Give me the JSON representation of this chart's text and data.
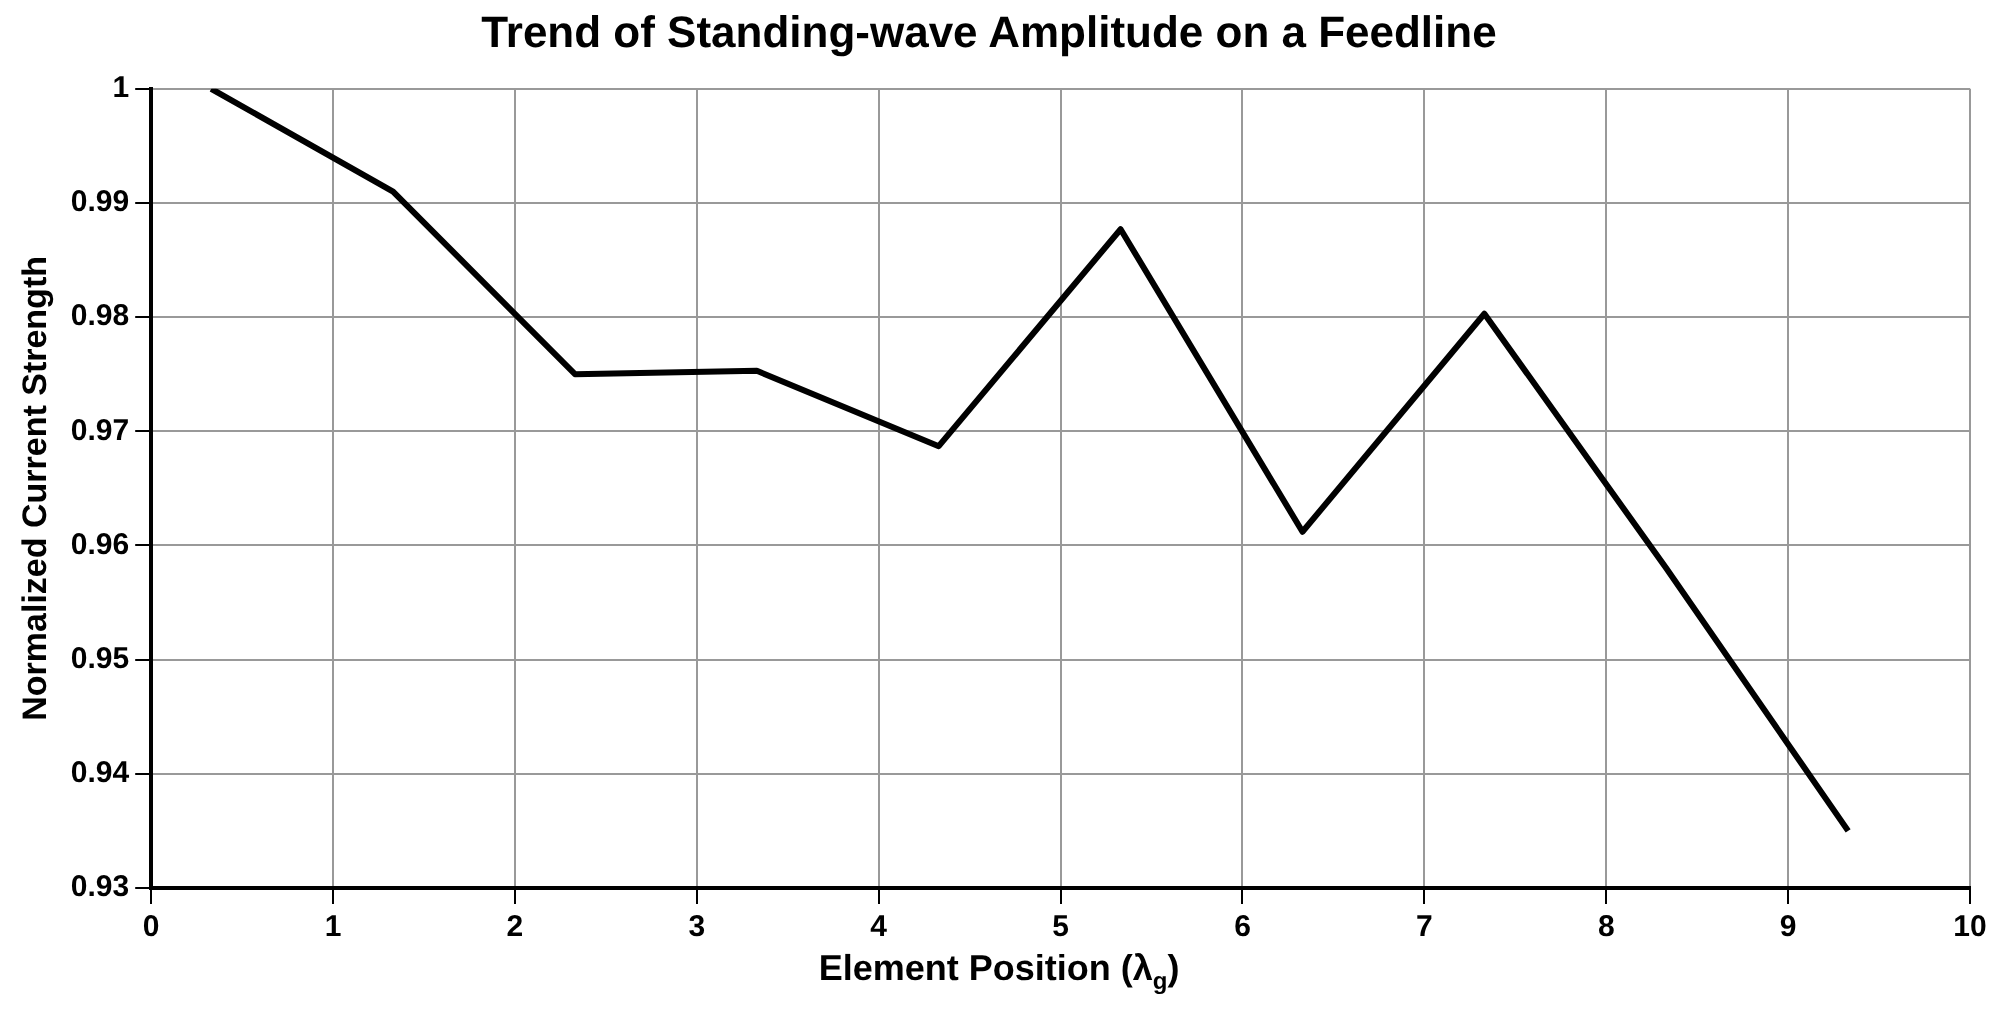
{
  "chart_data": {
    "type": "line",
    "title": "Trend of Standing-wave Amplitude on a Feedline",
    "xlabel": "Element Position (λ$_{g}$)",
    "ylabel": "Normalized Current Strength",
    "series": [
      {
        "color": "#000000",
        "x": [
          0.33,
          1.33,
          2.33,
          3.33,
          4.33,
          5.33,
          6.33,
          7.33,
          8.33,
          9.33
        ],
        "values": [
          1.0,
          0.991,
          0.975,
          0.9753,
          0.9687,
          0.9877,
          0.9612,
          0.9803,
          0.958,
          0.935
        ]
      }
    ],
    "xlim": [
      0,
      10
    ],
    "xticks": [
      0,
      1,
      2,
      3,
      4,
      5,
      6,
      7,
      8,
      9,
      10
    ],
    "ylim": [
      0.93,
      1
    ],
    "yticks": [
      0.93,
      0.94,
      0.95,
      0.96,
      0.97,
      0.98,
      0.99,
      1
    ],
    "grid": true,
    "legend": false,
    "marker": "none",
    "line_style": "solid"
  }
}
